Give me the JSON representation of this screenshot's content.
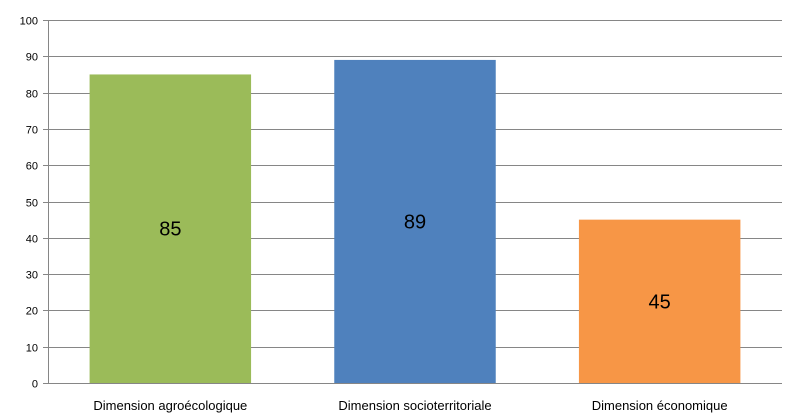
{
  "chart_data": {
    "type": "bar",
    "title": "",
    "xlabel": "",
    "ylabel": "",
    "categories": [
      "Dimension agroécologique",
      "Dimension socioterritoriale",
      "Dimension économique"
    ],
    "values": [
      85,
      89,
      45
    ],
    "data_labels": [
      "85",
      "89",
      "45"
    ],
    "colors": [
      "#9BBB59",
      "#4F81BD",
      "#F79646"
    ],
    "ylim": [
      0,
      100
    ],
    "yticks": [
      0,
      10,
      20,
      30,
      40,
      50,
      60,
      70,
      80,
      90,
      100
    ],
    "ytick_labels": [
      "0",
      "10",
      "20",
      "30",
      "40",
      "50",
      "60",
      "70",
      "80",
      "90",
      "100"
    ],
    "grid": true,
    "legend": "none"
  }
}
